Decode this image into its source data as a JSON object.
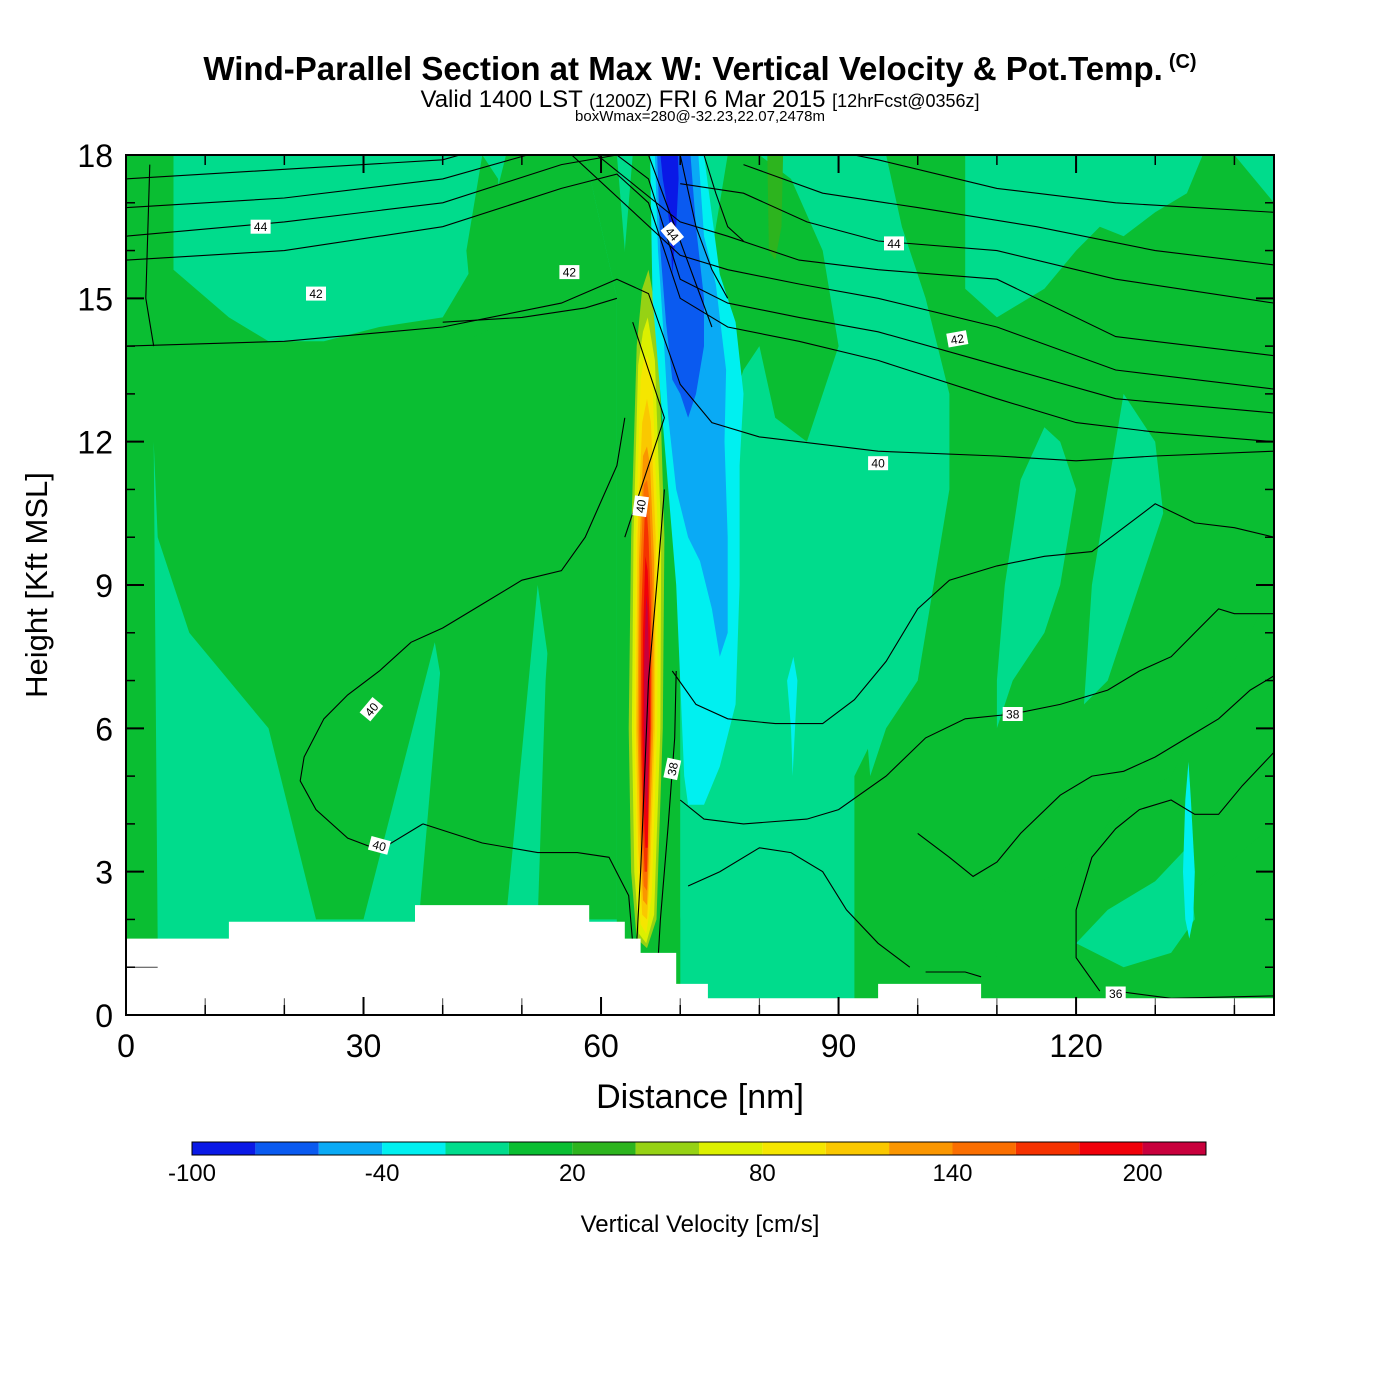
{
  "header": {
    "title": "Wind-Parallel Section at Max W: Vertical Velocity & Pot.Temp.",
    "title_mark": "(C)",
    "valid_prefix": "Valid 1400 LST",
    "valid_utc": "(1200Z)",
    "valid_date": "FRI 6 Mar 2015",
    "forecast": "[12hrFcst@0356z]",
    "box_info": "boxWmax=280@-32.23,22.07,2478m"
  },
  "chart_data": {
    "type": "heatmap",
    "xlabel": "Distance [nm]",
    "ylabel": "Height [Kft MSL]",
    "xlim": [
      0,
      145
    ],
    "ylim": [
      0,
      18
    ],
    "x_ticks": [
      0,
      30,
      60,
      90,
      120
    ],
    "y_ticks": [
      0,
      3,
      6,
      9,
      12,
      15,
      18
    ],
    "terrain": [
      {
        "x": 0,
        "h": 1.6
      },
      {
        "x": 13,
        "h": 1.6
      },
      {
        "x": 13,
        "h": 1.95
      },
      {
        "x": 36.5,
        "h": 1.95
      },
      {
        "x": 36.5,
        "h": 2.3
      },
      {
        "x": 58.5,
        "h": 2.3
      },
      {
        "x": 58.5,
        "h": 1.95
      },
      {
        "x": 63,
        "h": 1.95
      },
      {
        "x": 63,
        "h": 1.6
      },
      {
        "x": 65,
        "h": 1.6
      },
      {
        "x": 65,
        "h": 1.3
      },
      {
        "x": 69.5,
        "h": 1.3
      },
      {
        "x": 69.5,
        "h": 0.65
      },
      {
        "x": 73.5,
        "h": 0.65
      },
      {
        "x": 73.5,
        "h": 0.35
      },
      {
        "x": 95,
        "h": 0.35
      },
      {
        "x": 95,
        "h": 0.65
      },
      {
        "x": 108,
        "h": 0.65
      },
      {
        "x": 108,
        "h": 0.35
      },
      {
        "x": 145,
        "h": 0.35
      }
    ],
    "velocity_colorbar": {
      "label": "Vertical Velocity [cm/s]",
      "tick_labels": [
        "-100",
        "-40",
        "20",
        "80",
        "140",
        "200"
      ],
      "tick_values": [
        -100,
        -40,
        20,
        80,
        140,
        200
      ],
      "bins": [
        -100,
        -80,
        -60,
        -40,
        -20,
        0,
        20,
        40,
        60,
        80,
        100,
        120,
        140,
        160,
        180,
        200,
        220
      ],
      "colors": [
        "#0a19e6",
        "#0a5af0",
        "#0aaaf5",
        "#00f0f0",
        "#00dc8c",
        "#0abe32",
        "#2db41e",
        "#96d214",
        "#dcf000",
        "#f5e600",
        "#fac800",
        "#fa9600",
        "#fa6e00",
        "#f53200",
        "#f0000a",
        "#c8003c"
      ]
    },
    "theta_contour_labels": [
      {
        "text": "44",
        "x": 17,
        "y": 16.5,
        "rot": 0
      },
      {
        "text": "42",
        "x": 24,
        "y": 15.1,
        "rot": 0
      },
      {
        "text": "42",
        "x": 56,
        "y": 15.55,
        "rot": 0
      },
      {
        "text": "44",
        "x": 69,
        "y": 16.35,
        "rot": 50
      },
      {
        "text": "44",
        "x": 97,
        "y": 16.15,
        "rot": 0
      },
      {
        "text": "42",
        "x": 105,
        "y": 14.15,
        "rot": -10
      },
      {
        "text": "40",
        "x": 95,
        "y": 11.55,
        "rot": 0
      },
      {
        "text": "40",
        "x": 65,
        "y": 10.65,
        "rot": -82
      },
      {
        "text": "40",
        "x": 31,
        "y": 6.4,
        "rot": -50
      },
      {
        "text": "40",
        "x": 32,
        "y": 3.55,
        "rot": 15
      },
      {
        "text": "38",
        "x": 69,
        "y": 5.15,
        "rot": -78
      },
      {
        "text": "38",
        "x": 112,
        "y": 6.3,
        "rot": 0
      },
      {
        "text": "36",
        "x": 125,
        "y": 0.45,
        "rot": 0
      }
    ]
  }
}
